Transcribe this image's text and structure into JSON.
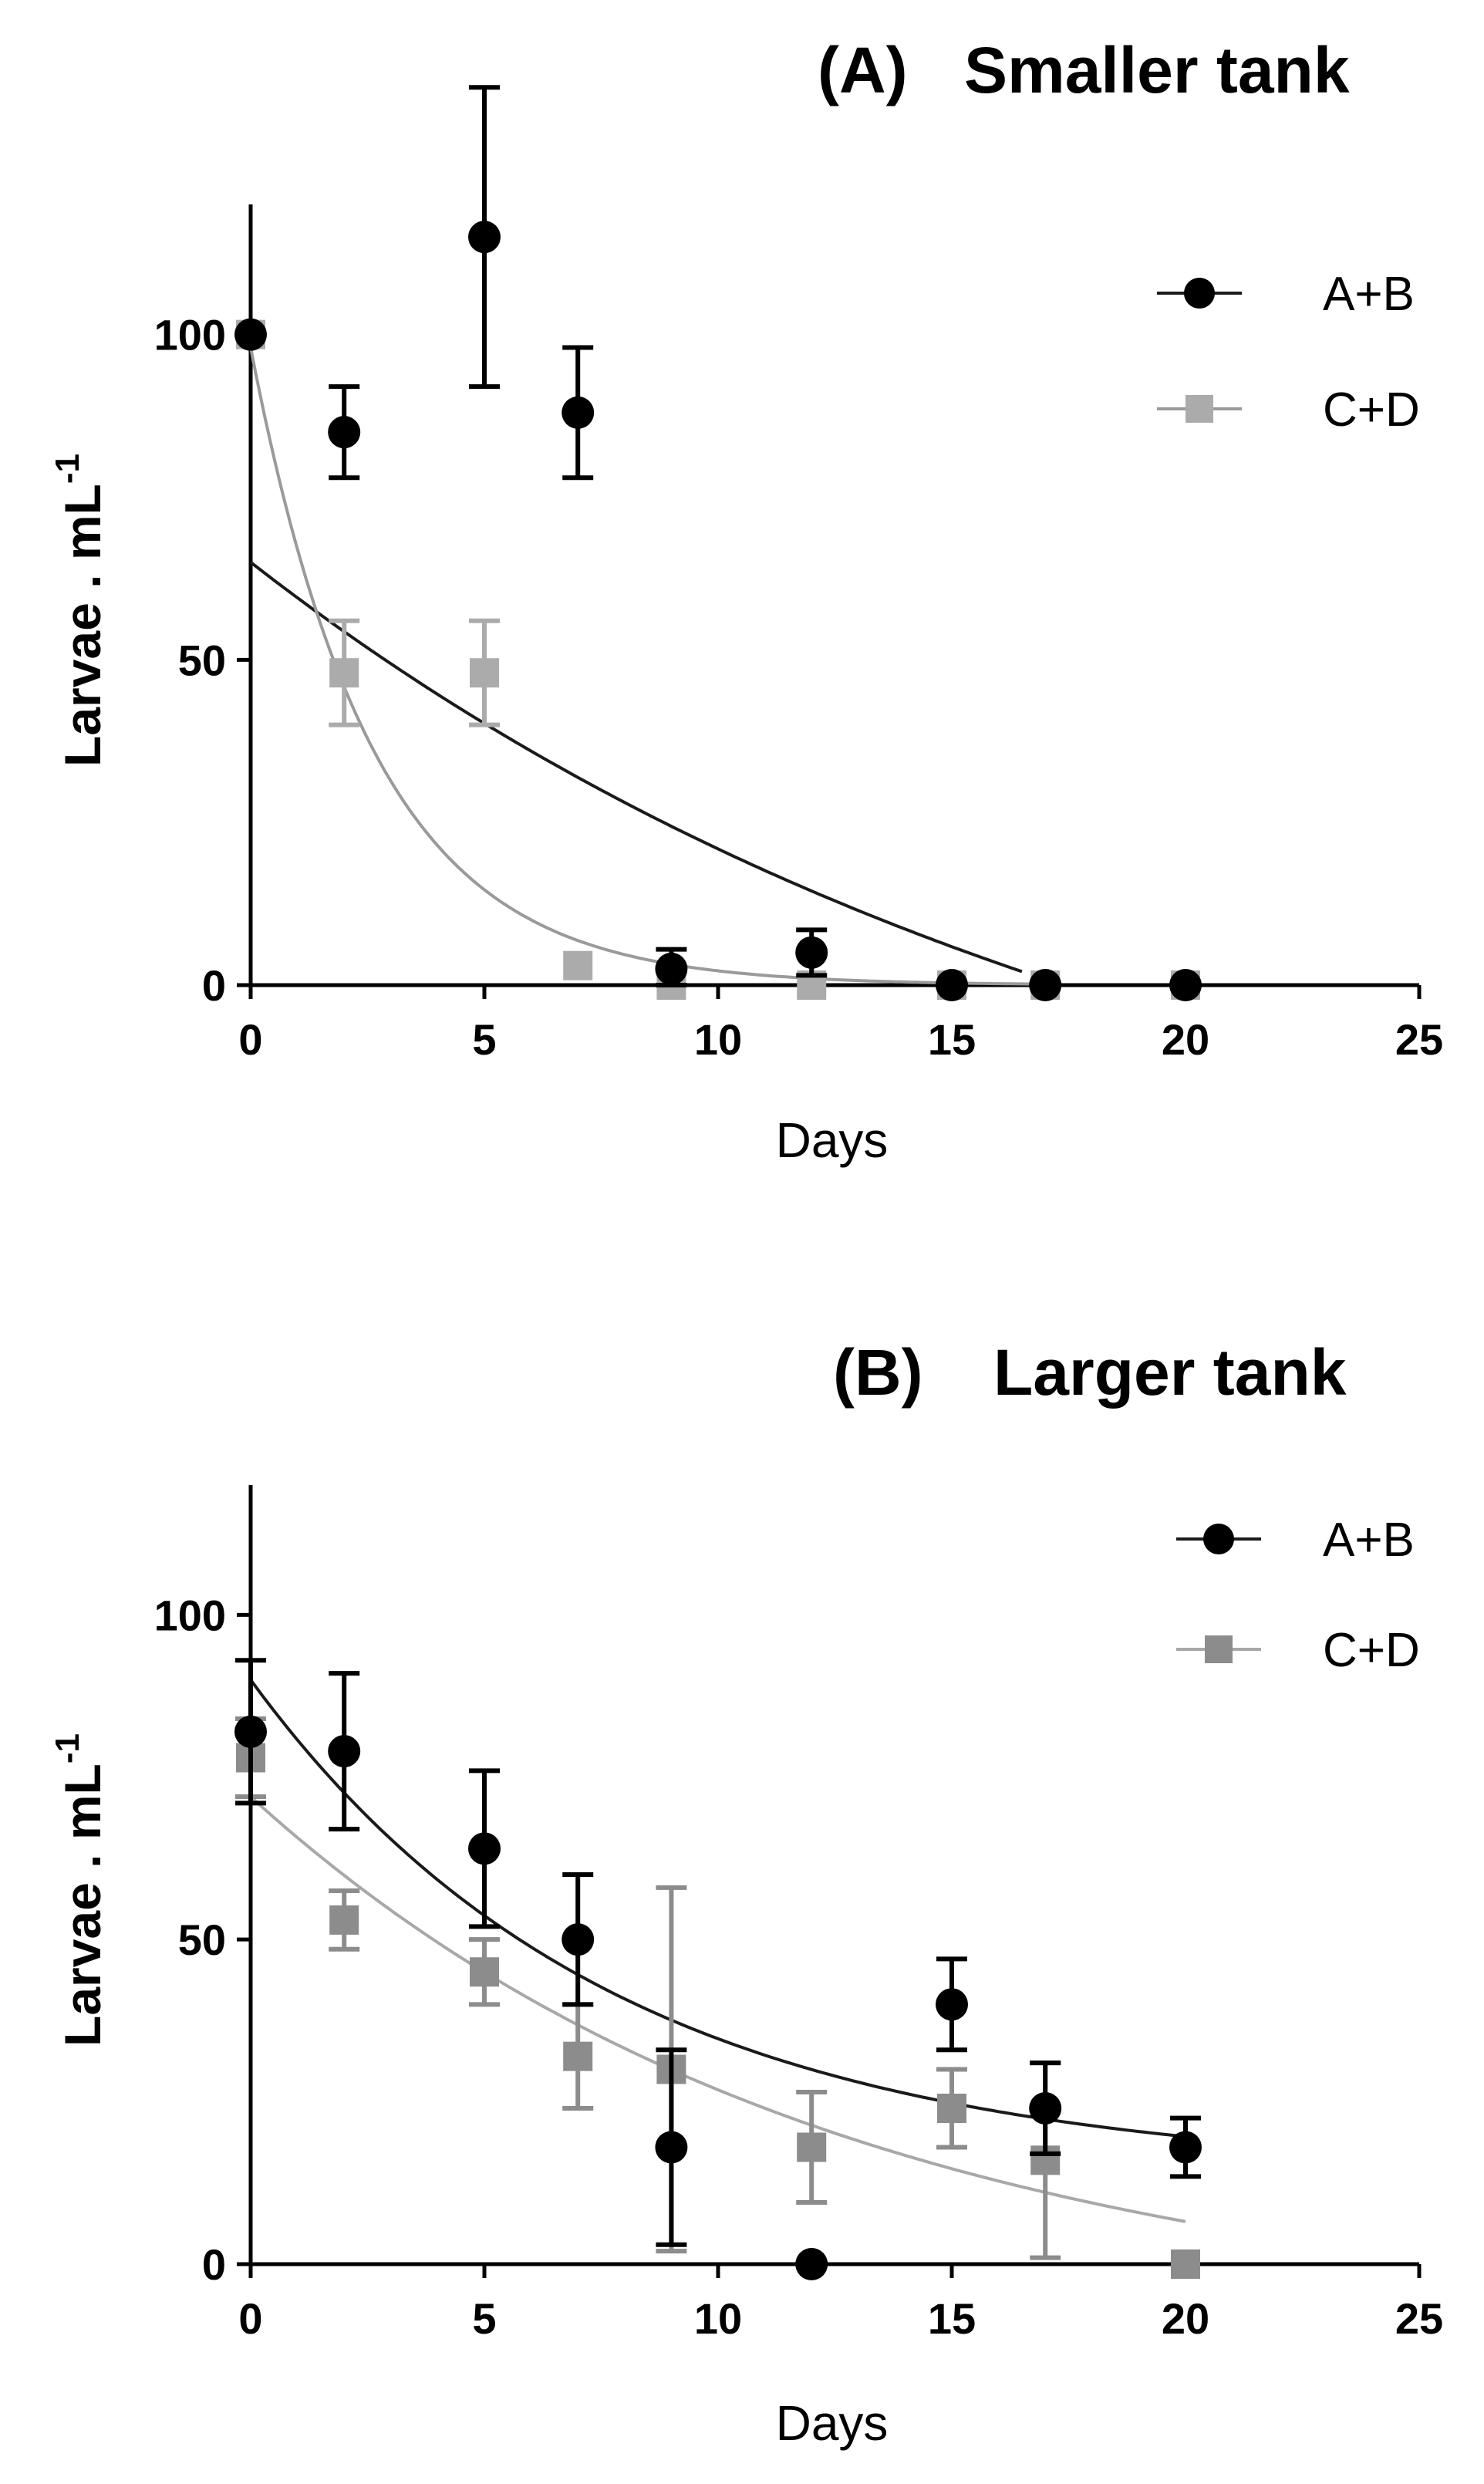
{
  "chart_data": [
    {
      "type": "scatter",
      "panel": "A",
      "title_prefix": "(A)",
      "title": "Smaller tank",
      "xlabel": "Days",
      "ylabel_main": "Larvae . mL",
      "ylabel_sup": "-1",
      "xlim": [
        0,
        25
      ],
      "ylim": [
        0,
        120
      ],
      "xticks": [
        0,
        5,
        10,
        15,
        20,
        25
      ],
      "yticks": [
        0,
        50,
        100
      ],
      "legend_position": "top-right",
      "series": [
        {
          "name": "A+B",
          "marker": "circle",
          "color": "#000000",
          "line_color": "#1a1a1a",
          "x": [
            0,
            2,
            5,
            7,
            9,
            12,
            15,
            17,
            20
          ],
          "y": [
            100,
            85,
            115,
            88,
            2.5,
            5,
            0,
            0,
            0
          ],
          "err": [
            0,
            7,
            23,
            10,
            3,
            3.5,
            0,
            0,
            0
          ],
          "fit": {
            "a": 112,
            "b": -0.05,
            "c": -47,
            "x_end": 16.5
          }
        },
        {
          "name": "C+D",
          "marker": "square",
          "color": "#ababab",
          "line_color": "#9a9a9a",
          "x": [
            0,
            2,
            5,
            7,
            9,
            12,
            15,
            17,
            20
          ],
          "y": [
            100,
            48,
            48,
            3,
            0,
            0,
            0,
            0,
            0
          ],
          "err": [
            0,
            8,
            8,
            0,
            0,
            0,
            0,
            0,
            0
          ],
          "fit": {
            "a": 98,
            "b": -0.38,
            "c": 0,
            "x_end": 17
          }
        }
      ]
    },
    {
      "type": "scatter",
      "panel": "B",
      "title_prefix": "(B)",
      "title": "Larger tank",
      "xlabel": "Days",
      "ylabel_main": "Larvae . mL",
      "ylabel_sup": "-1",
      "xlim": [
        0,
        25
      ],
      "ylim": [
        0,
        120
      ],
      "xticks": [
        0,
        5,
        10,
        15,
        20,
        25
      ],
      "yticks": [
        0,
        50,
        100
      ],
      "legend_position": "top-right",
      "series": [
        {
          "name": "A+B",
          "marker": "circle",
          "color": "#000000",
          "line_color": "#1a1a1a",
          "x": [
            0,
            2,
            5,
            7,
            9,
            12,
            15,
            17,
            20
          ],
          "y": [
            82,
            79,
            64,
            50,
            18,
            0,
            40,
            24,
            18
          ],
          "err": [
            11,
            12,
            12,
            10,
            15,
            0,
            7,
            7,
            4.5
          ],
          "fit": {
            "a": 76,
            "b": -0.13,
            "c": 14,
            "x_end": 20
          }
        },
        {
          "name": "C+D",
          "marker": "square",
          "color": "#8c8c8c",
          "line_color": "#a8a8a8",
          "x": [
            0,
            2,
            5,
            7,
            9,
            12,
            15,
            17,
            20
          ],
          "y": [
            78,
            53,
            45,
            32,
            30,
            18,
            24,
            16,
            0
          ],
          "err": [
            6,
            4.5,
            5,
            8,
            28,
            8.5,
            6,
            15,
            0
          ],
          "fit": {
            "a": 82,
            "b": -0.08,
            "c": -10,
            "x_end": 20
          }
        }
      ]
    }
  ]
}
